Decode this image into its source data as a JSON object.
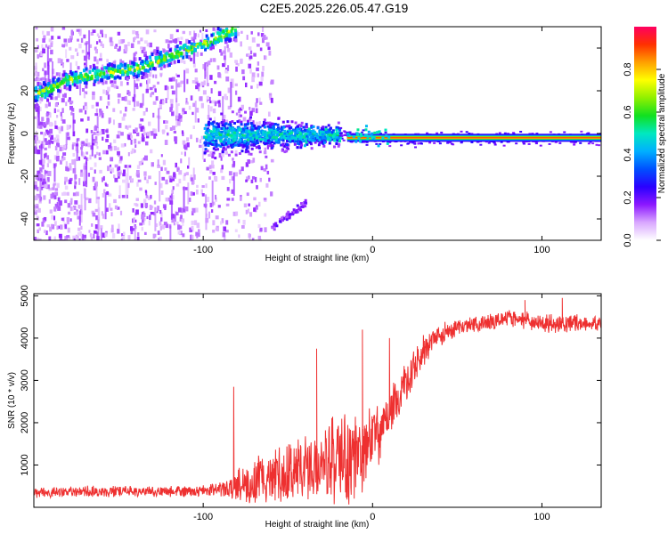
{
  "title": "C2E5.2025.226.05.47.G19",
  "chart_data": [
    {
      "type": "heatmap",
      "xlabel": "Height of straight line (km)",
      "ylabel": "Frequency (Hz)",
      "xlim": [
        -200,
        135
      ],
      "ylim": [
        -50,
        50
      ],
      "xticks": [
        -100,
        0,
        100
      ],
      "yticks": [
        -40,
        -20,
        0,
        20,
        40
      ],
      "colorbar": {
        "label": "Normalized spectral amplitude",
        "range": [
          0,
          1
        ],
        "ticks": [
          0.0,
          0.2,
          0.4,
          0.6,
          0.8
        ],
        "colors": [
          "#ffffff",
          "#d9a8ff",
          "#8c18ff",
          "#2a00ff",
          "#0050ff",
          "#00b0ff",
          "#00e8c0",
          "#10e020",
          "#90f000",
          "#ffff00",
          "#ffa000",
          "#ff3000",
          "#ff0060"
        ]
      },
      "features": [
        {
          "name": "upper band",
          "x": [
            -200,
            -180,
            -160,
            -140,
            -120,
            -100,
            -80
          ],
          "y": [
            19,
            26,
            29,
            31,
            37,
            43,
            50
          ]
        },
        {
          "name": "carrier",
          "x": [
            -100,
            -80,
            -60,
            -40,
            -20,
            0,
            20,
            40,
            60,
            80,
            100,
            135
          ],
          "y": [
            0,
            0,
            -1,
            0,
            0,
            -2,
            -2,
            -2,
            -2,
            -2,
            -2,
            -2
          ]
        },
        {
          "name": "lower streak",
          "x": [
            -60,
            -40
          ],
          "y": [
            -43,
            -32
          ]
        }
      ]
    },
    {
      "type": "line",
      "xlabel": "Height of straight line (km)",
      "ylabel": "SNR (10 * v/v)",
      "xlim": [
        -200,
        135
      ],
      "ylim": [
        0,
        5050
      ],
      "xticks": [
        -100,
        0,
        100
      ],
      "yticks": [
        1000,
        2000,
        3000,
        4000,
        5000
      ],
      "color": "#ee3030",
      "envelope": {
        "x": [
          -200,
          -150,
          -100,
          -90,
          -80,
          -70,
          -60,
          -50,
          -40,
          -30,
          -20,
          -10,
          0,
          10,
          20,
          30,
          40,
          60,
          80,
          100,
          120,
          135
        ],
        "median": [
          350,
          380,
          380,
          430,
          530,
          600,
          700,
          780,
          850,
          950,
          1050,
          1150,
          1600,
          2200,
          3000,
          3700,
          4100,
          4350,
          4450,
          4350,
          4350,
          4350
        ],
        "spread": [
          120,
          130,
          130,
          200,
          350,
          500,
          600,
          750,
          850,
          900,
          1000,
          1000,
          800,
          600,
          500,
          350,
          250,
          200,
          200,
          200,
          200,
          200
        ]
      },
      "spikes": [
        {
          "x": -82,
          "y": 2850
        },
        {
          "x": -33,
          "y": 3750
        },
        {
          "x": -6,
          "y": 4200
        },
        {
          "x": 10,
          "y": 4000
        },
        {
          "x": 90,
          "y": 4900
        },
        {
          "x": 112,
          "y": 4950
        }
      ]
    }
  ]
}
